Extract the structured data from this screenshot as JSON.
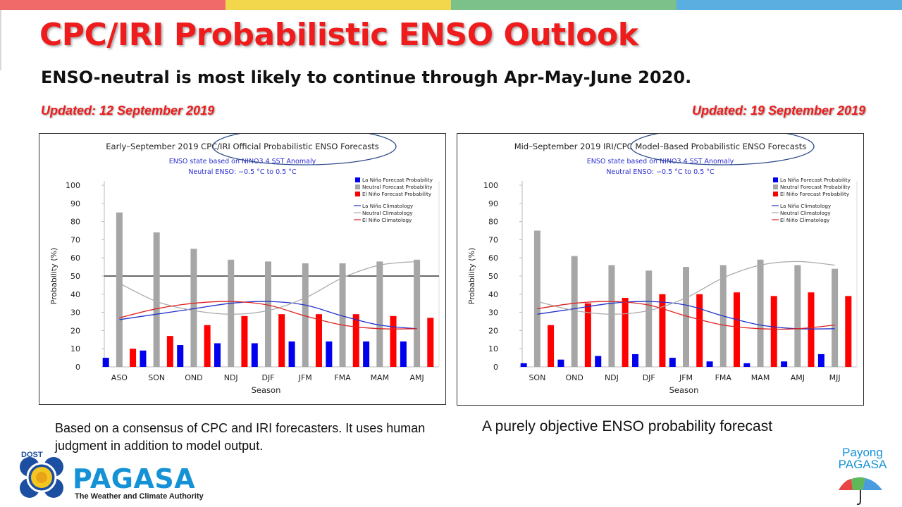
{
  "slide": {
    "title": "CPC/IRI Probabilistic ENSO Outlook",
    "headline": "ENSO-neutral is most likely to continue through Apr-May-June 2020.",
    "updated_left": "Updated: 12 September 2019",
    "updated_right": "Updated: 19 September 2019",
    "caption_left": "Based on a consensus of CPC and IRI forecasters. It uses human  judgment  in addition to model output.",
    "caption_right": "A purely objective ENSO probability forecast",
    "logo": {
      "dos": "DOST",
      "name": "PAGASA",
      "tagline": "The Weather and Climate Authority"
    },
    "payong": {
      "line1": "Payong",
      "line2": "PAGASA"
    },
    "colors": {
      "title": "#ee1c1c",
      "updated": "#ee1c1c",
      "pagasa_blue": "#1592d6",
      "bar_strip": [
        "#f06a6a",
        "#f2d64b",
        "#7cc08a",
        "#5aaee0"
      ]
    }
  },
  "chart_data": [
    {
      "type": "bar",
      "title": "Early–September 2019 CPC/IRI Official Probabilistic ENSO Forecasts",
      "subtitle1": "ENSO state based on NINO3.4 SST Anomaly",
      "subtitle2": "Neutral ENSO: −0.5 °C to 0.5 °C",
      "xlabel": "Season",
      "ylabel": "Probability (%)",
      "ylim": [
        0,
        100
      ],
      "yticks": [
        "0",
        "10",
        "20",
        "30",
        "40",
        "50",
        "60",
        "70",
        "80",
        "90",
        "100"
      ],
      "categories": [
        "ASO",
        "SON",
        "OND",
        "NDJ",
        "DJF",
        "JFM",
        "FMA",
        "MAM",
        "AMJ"
      ],
      "series": [
        {
          "name": "La Niña Forecast Probability",
          "color": "#0000ee",
          "values": [
            5,
            9,
            12,
            13,
            13,
            14,
            14,
            14,
            14
          ]
        },
        {
          "name": "Neutral Forecast Probability",
          "color": "#a6a6a6",
          "values": [
            85,
            74,
            65,
            59,
            58,
            57,
            57,
            58,
            59
          ]
        },
        {
          "name": "El Niño Forecast Probability",
          "color": "#ff0000",
          "values": [
            10,
            17,
            23,
            28,
            29,
            29,
            29,
            28,
            27
          ]
        }
      ],
      "climatology": [
        {
          "name": "La Niña Climatology",
          "color": "#2233cc",
          "values": [
            26,
            29,
            32,
            35,
            36,
            34,
            28,
            23,
            21
          ]
        },
        {
          "name": "Neutral Climatology",
          "color": "#aaaaaa",
          "values": [
            46,
            36,
            31,
            29,
            31,
            38,
            49,
            56,
            58
          ]
        },
        {
          "name": "El Niño Climatology",
          "color": "#dd2222",
          "values": [
            27,
            32,
            35,
            36,
            34,
            28,
            23,
            21,
            21
          ]
        }
      ],
      "reference_line": 50,
      "legend_position": "top-right",
      "highlight": "CPC/IRI Official Probabilistic ENSO Forecasts",
      "grid": false
    },
    {
      "type": "bar",
      "title": "Mid–September 2019 IRI/CPC Model–Based Probabilistic ENSO Forecasts",
      "subtitle1": "ENSO state based on NINO3.4 SST Anomaly",
      "subtitle2": "Neutral ENSO: −0.5 °C to 0.5 °C",
      "xlabel": "Season",
      "ylabel": "Probability (%)",
      "ylim": [
        0,
        100
      ],
      "yticks": [
        "0",
        "10",
        "20",
        "30",
        "40",
        "50",
        "60",
        "70",
        "80",
        "90",
        "100"
      ],
      "categories": [
        "SON",
        "OND",
        "NDJ",
        "DJF",
        "JFM",
        "FMA",
        "MAM",
        "AMJ",
        "MJJ"
      ],
      "series": [
        {
          "name": "La Niña Forecast Probability",
          "color": "#0000ee",
          "values": [
            2,
            4,
            6,
            7,
            5,
            3,
            2,
            3,
            7
          ]
        },
        {
          "name": "Neutral Forecast Probability",
          "color": "#a6a6a6",
          "values": [
            75,
            61,
            56,
            53,
            55,
            56,
            59,
            56,
            54
          ]
        },
        {
          "name": "El Niño Forecast Probability",
          "color": "#ff0000",
          "values": [
            23,
            35,
            38,
            40,
            40,
            41,
            39,
            41,
            39
          ]
        }
      ],
      "climatology": [
        {
          "name": "La Niña Climatology",
          "color": "#2233cc",
          "values": [
            29,
            32,
            35,
            36,
            34,
            28,
            23,
            21,
            21
          ]
        },
        {
          "name": "Neutral Climatology",
          "color": "#aaaaaa",
          "values": [
            36,
            31,
            29,
            31,
            38,
            49,
            56,
            58,
            56
          ]
        },
        {
          "name": "El Niño Climatology",
          "color": "#dd2222",
          "values": [
            32,
            35,
            36,
            34,
            28,
            23,
            21,
            21,
            23
          ]
        }
      ],
      "reference_line": null,
      "legend_position": "top-right",
      "highlight": "IRI/CPC Model–Based Probabilistic ENSO Forecasts",
      "grid": false
    }
  ]
}
